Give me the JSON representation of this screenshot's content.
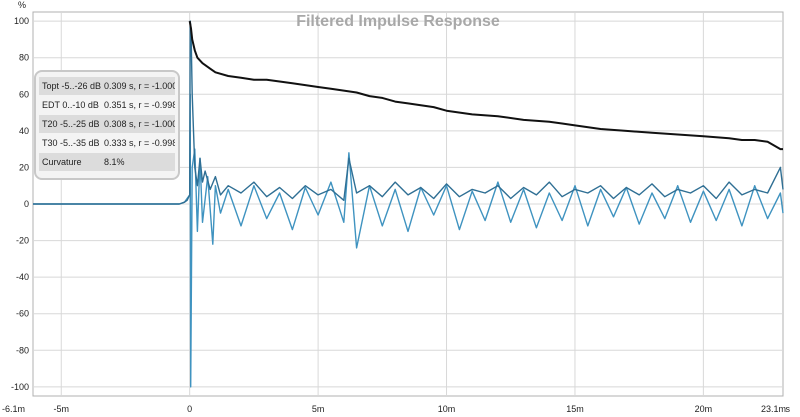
{
  "chart_data": {
    "type": "line",
    "title": "Filtered Impulse Response",
    "ylabel": "%",
    "xlabel": "s",
    "xlim": [
      -6.1,
      23.1
    ],
    "ylim": [
      -105,
      105
    ],
    "x_unit": "ms",
    "xticks": [
      {
        "value": -6.1,
        "label": "-6.1m"
      },
      {
        "value": -5,
        "label": "-5m"
      },
      {
        "value": 0,
        "label": "0"
      },
      {
        "value": 5,
        "label": "5m"
      },
      {
        "value": 10,
        "label": "10m"
      },
      {
        "value": 15,
        "label": "15m"
      },
      {
        "value": 20,
        "label": "20m"
      },
      {
        "value": 23.1,
        "label": "23.1m"
      }
    ],
    "yticks": [
      100,
      80,
      60,
      40,
      20,
      0,
      -20,
      -40,
      -60,
      -80,
      -100
    ],
    "grid": true,
    "series": [
      {
        "color": "#111111",
        "x": [
          0,
          0.05,
          0.1,
          0.2,
          0.3,
          0.5,
          0.8,
          1.0,
          1.5,
          2.0,
          2.5,
          3.0,
          3.5,
          4.0,
          4.5,
          5.0,
          5.5,
          6.0,
          6.5,
          7.0,
          7.5,
          8.0,
          8.5,
          9.0,
          9.5,
          10.0,
          11.0,
          12.0,
          13.0,
          14.0,
          14.5,
          15.0,
          16.0,
          17.0,
          18.0,
          19.0,
          20.0,
          21.0,
          21.5,
          22.0,
          22.5,
          23.0,
          23.1
        ],
        "y": [
          100,
          96,
          90,
          84,
          80,
          77,
          74,
          72,
          70,
          69,
          68,
          68,
          67,
          66,
          65,
          64,
          63,
          62,
          61,
          59,
          58,
          56,
          55,
          54,
          53,
          51,
          49,
          48,
          46,
          45,
          44,
          43,
          41,
          40,
          39,
          38,
          37,
          36,
          35,
          35,
          34,
          30,
          30
        ]
      },
      {
        "color": "#2f6f94",
        "x": [
          -6.1,
          -0.4,
          -0.2,
          -0.1,
          0,
          0.02,
          0.05,
          0.1,
          0.2,
          0.3,
          0.4,
          0.5,
          0.6,
          0.8,
          1.0,
          1.2,
          1.5,
          2.0,
          2.5,
          3.0,
          3.5,
          4.0,
          4.5,
          5.0,
          5.5,
          6.0,
          6.2,
          6.5,
          7.0,
          7.5,
          8.0,
          8.5,
          9.0,
          9.5,
          10.0,
          10.5,
          11.0,
          11.5,
          12.0,
          12.5,
          13.0,
          13.5,
          14.0,
          14.5,
          15.0,
          15.5,
          16.0,
          16.5,
          17.0,
          17.5,
          18.0,
          18.5,
          19.0,
          19.5,
          20.0,
          20.5,
          21.0,
          21.5,
          22.0,
          22.5,
          23.0,
          23.1
        ],
        "y": [
          0,
          0,
          1,
          2,
          5,
          100,
          96,
          60,
          20,
          10,
          25,
          12,
          18,
          8,
          15,
          5,
          10,
          6,
          12,
          4,
          9,
          3,
          10,
          5,
          8,
          2,
          25,
          6,
          10,
          4,
          12,
          5,
          9,
          3,
          11,
          4,
          8,
          6,
          10,
          3,
          9,
          5,
          12,
          4,
          8,
          6,
          10,
          3,
          9,
          5,
          11,
          4,
          8,
          6,
          10,
          3,
          12,
          5,
          8,
          6,
          20,
          8
        ]
      },
      {
        "color": "#3f93c0",
        "x": [
          -6.1,
          -0.4,
          -0.2,
          -0.1,
          0,
          0.02,
          0.04,
          0.06,
          0.1,
          0.2,
          0.3,
          0.4,
          0.5,
          0.7,
          0.9,
          1.0,
          1.2,
          1.5,
          2.0,
          2.5,
          3.0,
          3.5,
          4.0,
          4.5,
          5.0,
          5.5,
          6.0,
          6.2,
          6.5,
          7.0,
          7.5,
          8.0,
          8.5,
          9.0,
          9.5,
          10.0,
          10.5,
          11.0,
          11.5,
          12.0,
          12.5,
          13.0,
          13.5,
          14.0,
          14.5,
          15.0,
          15.5,
          16.0,
          16.5,
          17.0,
          17.5,
          18.0,
          18.5,
          19.0,
          19.5,
          20.0,
          20.5,
          21.0,
          21.5,
          22.0,
          22.5,
          23.0,
          23.1
        ],
        "y": [
          0,
          0,
          1,
          3,
          5,
          60,
          -100,
          -60,
          20,
          30,
          -15,
          25,
          -10,
          15,
          -22,
          10,
          -5,
          8,
          -12,
          10,
          -8,
          6,
          -14,
          9,
          -6,
          12,
          -10,
          28,
          -24,
          10,
          -12,
          8,
          -15,
          9,
          -6,
          10,
          -14,
          7,
          -9,
          12,
          -10,
          8,
          -13,
          6,
          -9,
          10,
          -12,
          8,
          -7,
          9,
          -11,
          6,
          -8,
          10,
          -10,
          7,
          -9,
          8,
          -12,
          10,
          -8,
          6,
          -5
        ]
      }
    ]
  },
  "info_panel": {
    "rows": [
      {
        "label": "Topt -5..-26 dB",
        "value": "0.309 s,  r = -1.000"
      },
      {
        "label": "EDT  0..-10 dB",
        "value": "0.351 s,  r = -0.998"
      },
      {
        "label": "T20 -5..-25 dB",
        "value": "0.308 s,  r = -1.000"
      },
      {
        "label": "T30 -5..-35 dB",
        "value": "0.333 s,  r = -0.998"
      },
      {
        "label": "Curvature",
        "value": "8.1%"
      }
    ]
  }
}
